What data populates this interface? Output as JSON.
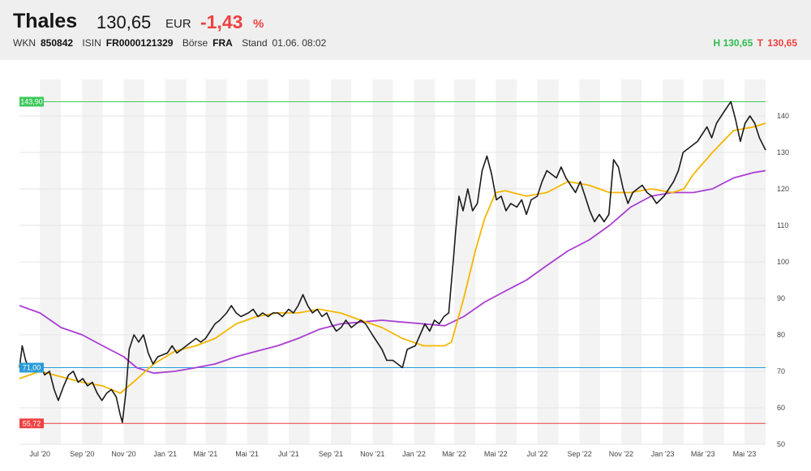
{
  "quote": {
    "name": "Thales",
    "price": "130,65",
    "currency": "EUR",
    "change": "-1,43",
    "change_unit": "%",
    "wkn_label": "WKN",
    "wkn": "850842",
    "isin_label": "ISIN",
    "isin": "FR0000121329",
    "exchange_label": "Börse",
    "exchange": "FRA",
    "stand_label": "Stand",
    "stand": "01.06. 08:02",
    "high_label": "H",
    "high": "130,65",
    "low_label": "T",
    "low": "130,65",
    "colors": {
      "up": "#2fbd4f",
      "down": "#ef4141"
    }
  },
  "chart_data": {
    "type": "line",
    "x_range": [
      "2020-06-01",
      "2023-06-01"
    ],
    "ylim": [
      50,
      150
    ],
    "y_ticks": [
      50,
      60,
      70,
      80,
      90,
      100,
      110,
      120,
      130,
      140
    ],
    "x_ticks": [
      {
        "date": "2020-07-01",
        "label": "Jul '20"
      },
      {
        "date": "2020-09-01",
        "label": "Sep '20"
      },
      {
        "date": "2020-11-01",
        "label": "Nov '20"
      },
      {
        "date": "2021-01-01",
        "label": "Jan '21"
      },
      {
        "date": "2021-03-01",
        "label": "Mär '21"
      },
      {
        "date": "2021-05-01",
        "label": "Mai '21"
      },
      {
        "date": "2021-07-01",
        "label": "Jul '21"
      },
      {
        "date": "2021-09-01",
        "label": "Sep '21"
      },
      {
        "date": "2021-11-01",
        "label": "Nov '21"
      },
      {
        "date": "2022-01-01",
        "label": "Jan '22"
      },
      {
        "date": "2022-03-01",
        "label": "Mär '22"
      },
      {
        "date": "2022-05-01",
        "label": "Mai '22"
      },
      {
        "date": "2022-07-01",
        "label": "Jul '22"
      },
      {
        "date": "2022-09-01",
        "label": "Sep '22"
      },
      {
        "date": "2022-11-01",
        "label": "Nov '22"
      },
      {
        "date": "2023-01-01",
        "label": "Jan '23"
      },
      {
        "date": "2023-03-01",
        "label": "Mär '23"
      },
      {
        "date": "2023-05-01",
        "label": "Mai '23"
      }
    ],
    "reference_lines": [
      {
        "value": 143.9,
        "label": "143,90",
        "color": "#3ec95c"
      },
      {
        "value": 71.0,
        "label": "71,00",
        "color": "#2a9bd8"
      },
      {
        "value": 55.72,
        "label": "55,72",
        "color": "#ef4141"
      }
    ],
    "series": [
      {
        "color": "#1b1b1b",
        "points": [
          [
            "2020-06-01",
            71
          ],
          [
            "2020-06-05",
            77
          ],
          [
            "2020-06-10",
            73
          ],
          [
            "2020-06-17",
            70
          ],
          [
            "2020-06-24",
            71
          ],
          [
            "2020-07-01",
            72
          ],
          [
            "2020-07-08",
            69
          ],
          [
            "2020-07-15",
            70
          ],
          [
            "2020-07-22",
            65
          ],
          [
            "2020-07-28",
            62
          ],
          [
            "2020-08-05",
            66
          ],
          [
            "2020-08-12",
            69
          ],
          [
            "2020-08-19",
            70
          ],
          [
            "2020-08-26",
            67
          ],
          [
            "2020-09-02",
            68
          ],
          [
            "2020-09-09",
            66
          ],
          [
            "2020-09-16",
            67
          ],
          [
            "2020-09-23",
            64
          ],
          [
            "2020-09-30",
            62
          ],
          [
            "2020-10-07",
            64
          ],
          [
            "2020-10-14",
            65
          ],
          [
            "2020-10-21",
            63
          ],
          [
            "2020-10-27",
            58
          ],
          [
            "2020-10-30",
            56
          ],
          [
            "2020-11-04",
            64
          ],
          [
            "2020-11-09",
            76
          ],
          [
            "2020-11-16",
            80
          ],
          [
            "2020-11-23",
            78
          ],
          [
            "2020-11-30",
            80
          ],
          [
            "2020-12-07",
            75
          ],
          [
            "2020-12-14",
            72
          ],
          [
            "2020-12-21",
            74
          ],
          [
            "2021-01-04",
            75
          ],
          [
            "2021-01-11",
            77
          ],
          [
            "2021-01-18",
            75
          ],
          [
            "2021-01-25",
            76
          ],
          [
            "2021-02-01",
            77
          ],
          [
            "2021-02-08",
            78
          ],
          [
            "2021-02-15",
            79
          ],
          [
            "2021-02-22",
            78
          ],
          [
            "2021-03-01",
            79
          ],
          [
            "2021-03-08",
            81
          ],
          [
            "2021-03-15",
            83
          ],
          [
            "2021-03-22",
            84
          ],
          [
            "2021-04-01",
            86
          ],
          [
            "2021-04-08",
            88
          ],
          [
            "2021-04-15",
            86
          ],
          [
            "2021-04-22",
            85
          ],
          [
            "2021-05-03",
            86
          ],
          [
            "2021-05-10",
            87
          ],
          [
            "2021-05-17",
            85
          ],
          [
            "2021-05-24",
            86
          ],
          [
            "2021-06-01",
            85
          ],
          [
            "2021-06-08",
            86
          ],
          [
            "2021-06-15",
            86
          ],
          [
            "2021-06-22",
            85
          ],
          [
            "2021-07-01",
            87
          ],
          [
            "2021-07-08",
            86
          ],
          [
            "2021-07-15",
            88
          ],
          [
            "2021-07-22",
            91
          ],
          [
            "2021-07-29",
            88
          ],
          [
            "2021-08-05",
            86
          ],
          [
            "2021-08-12",
            87
          ],
          [
            "2021-08-19",
            85
          ],
          [
            "2021-08-26",
            86
          ],
          [
            "2021-09-02",
            83
          ],
          [
            "2021-09-09",
            81
          ],
          [
            "2021-09-16",
            82
          ],
          [
            "2021-09-23",
            84
          ],
          [
            "2021-10-01",
            82
          ],
          [
            "2021-10-08",
            83
          ],
          [
            "2021-10-15",
            84
          ],
          [
            "2021-10-22",
            83
          ],
          [
            "2021-11-01",
            80
          ],
          [
            "2021-11-08",
            78
          ],
          [
            "2021-11-15",
            76
          ],
          [
            "2021-11-22",
            73
          ],
          [
            "2021-12-01",
            73
          ],
          [
            "2021-12-08",
            72
          ],
          [
            "2021-12-15",
            71
          ],
          [
            "2021-12-22",
            76
          ],
          [
            "2022-01-03",
            77
          ],
          [
            "2022-01-10",
            80
          ],
          [
            "2022-01-17",
            83
          ],
          [
            "2022-01-24",
            81
          ],
          [
            "2022-01-31",
            84
          ],
          [
            "2022-02-07",
            83
          ],
          [
            "2022-02-14",
            85
          ],
          [
            "2022-02-21",
            86
          ],
          [
            "2022-02-28",
            101
          ],
          [
            "2022-03-03",
            108
          ],
          [
            "2022-03-08",
            118
          ],
          [
            "2022-03-14",
            114
          ],
          [
            "2022-03-21",
            120
          ],
          [
            "2022-03-28",
            114
          ],
          [
            "2022-04-04",
            116
          ],
          [
            "2022-04-11",
            125
          ],
          [
            "2022-04-18",
            129
          ],
          [
            "2022-04-25",
            124
          ],
          [
            "2022-05-02",
            117
          ],
          [
            "2022-05-09",
            118
          ],
          [
            "2022-05-16",
            114
          ],
          [
            "2022-05-23",
            116
          ],
          [
            "2022-06-01",
            115
          ],
          [
            "2022-06-08",
            117
          ],
          [
            "2022-06-15",
            113
          ],
          [
            "2022-06-22",
            117
          ],
          [
            "2022-07-01",
            118
          ],
          [
            "2022-07-08",
            122
          ],
          [
            "2022-07-15",
            125
          ],
          [
            "2022-07-22",
            124
          ],
          [
            "2022-07-29",
            123
          ],
          [
            "2022-08-05",
            126
          ],
          [
            "2022-08-12",
            123
          ],
          [
            "2022-08-19",
            121
          ],
          [
            "2022-08-26",
            119
          ],
          [
            "2022-09-02",
            122
          ],
          [
            "2022-09-09",
            118
          ],
          [
            "2022-09-16",
            114
          ],
          [
            "2022-09-23",
            111
          ],
          [
            "2022-09-30",
            113
          ],
          [
            "2022-10-07",
            111
          ],
          [
            "2022-10-14",
            113
          ],
          [
            "2022-10-21",
            128
          ],
          [
            "2022-10-28",
            126
          ],
          [
            "2022-11-04",
            120
          ],
          [
            "2022-11-11",
            116
          ],
          [
            "2022-11-18",
            119
          ],
          [
            "2022-11-25",
            120
          ],
          [
            "2022-12-02",
            121
          ],
          [
            "2022-12-09",
            119
          ],
          [
            "2022-12-16",
            118
          ],
          [
            "2022-12-23",
            116
          ],
          [
            "2023-01-03",
            118
          ],
          [
            "2023-01-10",
            120
          ],
          [
            "2023-01-17",
            122
          ],
          [
            "2023-01-24",
            125
          ],
          [
            "2023-01-31",
            130
          ],
          [
            "2023-02-07",
            131
          ],
          [
            "2023-02-14",
            132
          ],
          [
            "2023-02-21",
            133
          ],
          [
            "2023-02-28",
            135
          ],
          [
            "2023-03-07",
            137
          ],
          [
            "2023-03-14",
            134
          ],
          [
            "2023-03-21",
            138
          ],
          [
            "2023-03-28",
            140
          ],
          [
            "2023-04-04",
            142
          ],
          [
            "2023-04-11",
            143.9
          ],
          [
            "2023-04-18",
            139
          ],
          [
            "2023-04-25",
            133
          ],
          [
            "2023-05-02",
            138
          ],
          [
            "2023-05-09",
            140
          ],
          [
            "2023-05-16",
            138
          ],
          [
            "2023-05-23",
            134
          ],
          [
            "2023-06-01",
            130.65
          ]
        ]
      },
      {
        "color": "#f5b600",
        "points": [
          [
            "2020-06-01",
            68
          ],
          [
            "2020-07-01",
            70
          ],
          [
            "2020-08-01",
            68.5
          ],
          [
            "2020-09-01",
            67
          ],
          [
            "2020-10-01",
            66
          ],
          [
            "2020-10-27",
            64
          ],
          [
            "2020-11-15",
            67
          ],
          [
            "2020-12-15",
            72
          ],
          [
            "2021-01-15",
            75.5
          ],
          [
            "2021-02-15",
            77
          ],
          [
            "2021-03-15",
            79
          ],
          [
            "2021-04-15",
            83
          ],
          [
            "2021-05-15",
            85
          ],
          [
            "2021-06-15",
            86
          ],
          [
            "2021-07-15",
            86
          ],
          [
            "2021-08-15",
            87
          ],
          [
            "2021-09-15",
            86
          ],
          [
            "2021-10-15",
            84
          ],
          [
            "2021-11-15",
            82
          ],
          [
            "2021-12-15",
            79
          ],
          [
            "2022-01-15",
            77
          ],
          [
            "2022-02-15",
            77
          ],
          [
            "2022-02-25",
            78
          ],
          [
            "2022-03-15",
            90
          ],
          [
            "2022-04-01",
            103
          ],
          [
            "2022-04-15",
            112
          ],
          [
            "2022-05-01",
            119
          ],
          [
            "2022-05-15",
            119.5
          ],
          [
            "2022-06-15",
            118
          ],
          [
            "2022-07-15",
            119
          ],
          [
            "2022-08-15",
            122
          ],
          [
            "2022-09-15",
            121
          ],
          [
            "2022-10-15",
            119
          ],
          [
            "2022-11-15",
            119
          ],
          [
            "2022-12-15",
            120
          ],
          [
            "2023-01-15",
            119
          ],
          [
            "2023-02-01",
            120
          ],
          [
            "2023-02-15",
            124
          ],
          [
            "2023-03-15",
            130
          ],
          [
            "2023-04-15",
            136
          ],
          [
            "2023-05-15",
            137
          ],
          [
            "2023-06-01",
            138
          ]
        ]
      },
      {
        "color": "#aa3ed2",
        "points": [
          [
            "2020-06-01",
            88
          ],
          [
            "2020-07-01",
            86
          ],
          [
            "2020-08-01",
            82
          ],
          [
            "2020-09-01",
            80
          ],
          [
            "2020-10-01",
            77
          ],
          [
            "2020-11-01",
            74
          ],
          [
            "2020-11-20",
            71
          ],
          [
            "2020-12-15",
            69.5
          ],
          [
            "2021-01-15",
            70
          ],
          [
            "2021-02-15",
            71
          ],
          [
            "2021-03-15",
            72
          ],
          [
            "2021-04-15",
            74
          ],
          [
            "2021-05-15",
            75.5
          ],
          [
            "2021-06-15",
            77
          ],
          [
            "2021-07-15",
            79
          ],
          [
            "2021-08-15",
            81.5
          ],
          [
            "2021-09-15",
            83
          ],
          [
            "2021-10-15",
            83.5
          ],
          [
            "2021-11-15",
            84
          ],
          [
            "2021-12-15",
            83.5
          ],
          [
            "2022-01-15",
            83
          ],
          [
            "2022-02-15",
            82.5
          ],
          [
            "2022-03-15",
            85
          ],
          [
            "2022-04-15",
            89
          ],
          [
            "2022-05-15",
            92
          ],
          [
            "2022-06-15",
            95
          ],
          [
            "2022-07-15",
            99
          ],
          [
            "2022-08-15",
            103
          ],
          [
            "2022-09-15",
            106
          ],
          [
            "2022-10-15",
            110
          ],
          [
            "2022-11-15",
            115
          ],
          [
            "2022-12-15",
            118
          ],
          [
            "2023-01-15",
            119
          ],
          [
            "2023-02-15",
            119
          ],
          [
            "2023-03-15",
            120
          ],
          [
            "2023-04-15",
            123
          ],
          [
            "2023-05-15",
            124.5
          ],
          [
            "2023-06-01",
            125
          ]
        ]
      }
    ]
  }
}
